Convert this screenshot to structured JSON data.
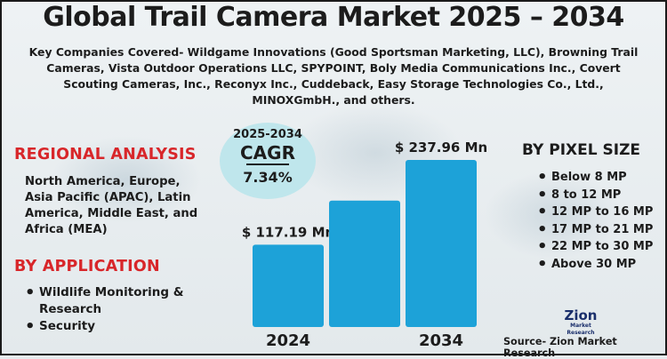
{
  "title": "Global Trail Camera Market 2025 – 2034",
  "subtitle": "Key Companies Covered- Wildgame Innovations (Good Sportsman Marketing, LLC), Browning Trail Cameras, Vista Outdoor Operations LLC, SPYPOINT, Boly Media Communications Inc., Covert Scouting Cameras, Inc., Reconyx Inc., Cuddeback, Easy Storage Technologies Co., Ltd., MINOXGmbH., and others.",
  "regional": {
    "heading": "REGIONAL ANALYSIS",
    "text": "North America, Europe, Asia Pacific (APAC), Latin America, Middle East, and Africa (MEA)"
  },
  "application": {
    "heading": "BY APPLICATION",
    "items": [
      "Wildlife Monitoring & Research",
      "Security"
    ]
  },
  "pixel_size": {
    "heading": "BY PIXEL SIZE",
    "items": [
      "Below 8 MP",
      "8 to 12 MP",
      "12 MP to 16 MP",
      "17 MP to 21 MP",
      "22 MP to 30 MP",
      "Above 30 MP"
    ]
  },
  "cagr": {
    "period": "2025-2034",
    "label": "CAGR",
    "value": "7.34%"
  },
  "chart_data": {
    "type": "bar",
    "categories": [
      "2024",
      "",
      "2034"
    ],
    "values": [
      117.19,
      180,
      237.96
    ],
    "data_labels": [
      "$ 117.19  Mn",
      "",
      "$ 237.96 Mn"
    ],
    "bar_color": "#1da2d8"
  },
  "source": "Source- Zion Market Research",
  "logo": {
    "name": "Zion",
    "tagline": "Market Research"
  }
}
